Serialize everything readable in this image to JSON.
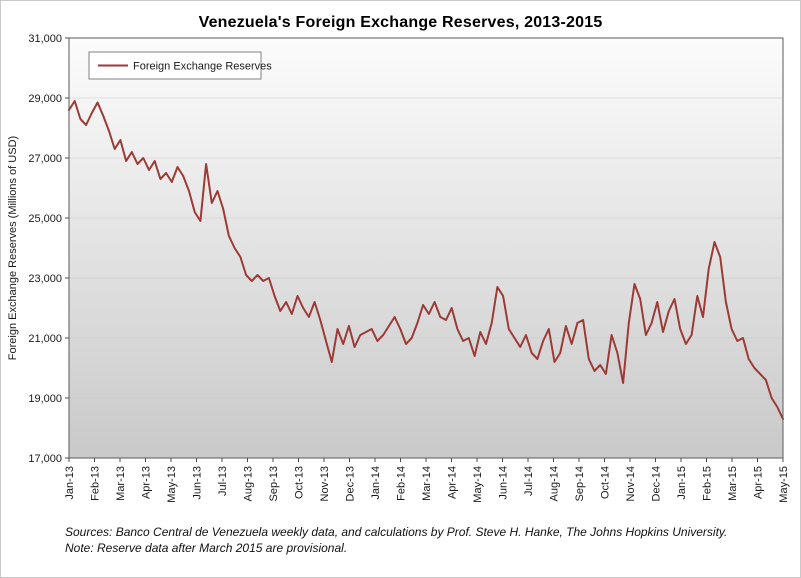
{
  "title": "Venezuela's Foreign Exchange Reserves, 2013-2015",
  "footer": {
    "line1": "Sources: Banco Central de Venezuela weekly data, and calculations by Prof. Steve H. Hanke, The Johns Hopkins University.",
    "line2": "Note: Reserve data after March 2015 are provisional."
  },
  "chart_data": {
    "type": "line",
    "title": "Venezuela's Foreign Exchange Reserves, 2013-2015",
    "xlabel": "",
    "ylabel": "Foreign Exchange Reserves (Millions of USD)",
    "x_unit": "weekly observations",
    "ylim": [
      17000,
      31000
    ],
    "yticks": [
      17000,
      19000,
      21000,
      23000,
      25000,
      27000,
      29000,
      31000
    ],
    "grid": false,
    "legend_position": "top-left-inside",
    "plot_background": {
      "type": "vertical-gradient",
      "from": "#fcfcfc",
      "to": "#c9c9c9"
    },
    "categories": [
      "Jan-13",
      "Feb-13",
      "Mar-13",
      "Apr-13",
      "May-13",
      "Jun-13",
      "Jul-13",
      "Aug-13",
      "Sep-13",
      "Oct-13",
      "Nov-13",
      "Dec-13",
      "Jan-14",
      "Feb-14",
      "Mar-14",
      "Apr-14",
      "May-14",
      "Jun-14",
      "Jul-14",
      "Aug-14",
      "Sep-14",
      "Oct-14",
      "Nov-14",
      "Dec-14",
      "Jan-15",
      "Feb-15",
      "Mar-15",
      "Apr-15",
      "May-15"
    ],
    "series": [
      {
        "name": "Foreign Exchange Reserves",
        "color": "#9c3a36",
        "values": [
          28600,
          28900,
          28300,
          28100,
          28500,
          28850,
          28400,
          27900,
          27300,
          27600,
          26900,
          27200,
          26800,
          27000,
          26600,
          26900,
          26300,
          26500,
          26200,
          26700,
          26400,
          25900,
          25200,
          24900,
          26800,
          25500,
          25900,
          25300,
          24400,
          24000,
          23700,
          23100,
          22900,
          23100,
          22900,
          23000,
          22400,
          21900,
          22200,
          21800,
          22400,
          22000,
          21700,
          22200,
          21600,
          20900,
          20200,
          21300,
          20800,
          21400,
          20700,
          21100,
          21200,
          21300,
          20900,
          21100,
          21400,
          21700,
          21300,
          20800,
          21000,
          21500,
          22100,
          21800,
          22200,
          21700,
          21600,
          22000,
          21300,
          20900,
          21000,
          20400,
          21200,
          20800,
          21500,
          22700,
          22400,
          21300,
          21000,
          20700,
          21100,
          20500,
          20300,
          20900,
          21300,
          20200,
          20500,
          21400,
          20800,
          21500,
          21600,
          20300,
          19900,
          20100,
          19800,
          21100,
          20500,
          19500,
          21500,
          22800,
          22300,
          21100,
          21500,
          22200,
          21200,
          21900,
          22300,
          21300,
          20800,
          21100,
          22400,
          21700,
          23300,
          24200,
          23700,
          22200,
          21300,
          20900,
          21000,
          20300,
          20000,
          19800,
          19600,
          19000,
          18700,
          18300
        ]
      }
    ]
  }
}
